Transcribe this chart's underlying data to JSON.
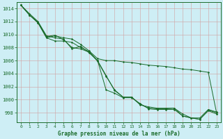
{
  "background_color": "#ceeef5",
  "grid_color_minor": "#c0dde3",
  "grid_color_major": "#b0cdd3",
  "line_color": "#1a6b2a",
  "title": "Graphe pression niveau de la mer (hPa)",
  "xlim": [
    -0.5,
    23.5
  ],
  "ylim": [
    996.5,
    1015.0
  ],
  "yticks": [
    998,
    1000,
    1002,
    1004,
    1006,
    1008,
    1010,
    1012,
    1014
  ],
  "xticks": [
    0,
    1,
    2,
    3,
    4,
    5,
    6,
    7,
    8,
    9,
    10,
    11,
    12,
    13,
    14,
    15,
    16,
    17,
    18,
    19,
    20,
    21,
    22,
    23
  ],
  "series": [
    [
      1014.5,
      1013.2,
      1012.0,
      1009.8,
      1009.5,
      1009.3,
      1007.8,
      1008.2,
      1007.2,
      1006.0,
      1001.5,
      1001.0,
      1000.3,
      1000.3,
      999.4,
      998.6,
      998.5,
      998.5,
      998.5,
      997.5,
      997.2,
      997.2,
      998.5,
      998.1
    ],
    [
      1014.5,
      1013.0,
      1011.8,
      1009.5,
      1009.8,
      1009.5,
      1009.3,
      1008.5,
      1007.5,
      1006.3,
      1006.0,
      1006.0,
      1005.8,
      1005.7,
      1005.5,
      1005.3,
      1005.2,
      1005.1,
      1004.9,
      1004.7,
      1004.6,
      1004.4,
      1004.2,
      997.8
    ],
    [
      1014.5,
      1013.0,
      1011.9,
      1009.7,
      1009.9,
      1009.2,
      1008.0,
      1007.8,
      1007.3,
      1005.9,
      1003.6,
      1001.5,
      1000.4,
      1000.4,
      999.2,
      998.9,
      998.7,
      998.7,
      998.7,
      997.5,
      997.2,
      997.0,
      998.3,
      997.8
    ],
    [
      1014.5,
      1013.0,
      1011.8,
      1009.5,
      1009.0,
      1009.0,
      1008.8,
      1008.0,
      1007.4,
      1006.0,
      1003.7,
      1001.4,
      1000.4,
      1000.4,
      999.3,
      998.7,
      998.6,
      998.6,
      998.7,
      997.8,
      997.2,
      997.0,
      998.4,
      998.0
    ]
  ]
}
